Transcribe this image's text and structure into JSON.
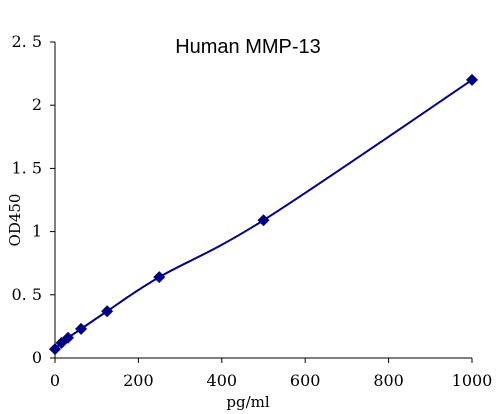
{
  "chart_data": {
    "type": "scatter",
    "title": "Human MMP-13",
    "xlabel": "pg/ml",
    "ylabel": "OD450",
    "xlim": [
      0,
      1000
    ],
    "ylim": [
      0,
      2.5
    ],
    "x_ticks": [
      0,
      200,
      400,
      600,
      800,
      1000
    ],
    "y_ticks": [
      0,
      0.5,
      1,
      1.5,
      2,
      2.5
    ],
    "x_tick_labels": [
      "0",
      "200",
      "400",
      "600",
      "800",
      "1000"
    ],
    "y_tick_labels": [
      "0",
      "0. 5",
      "1",
      "1. 5",
      "2",
      "2. 5"
    ],
    "grid": false,
    "smooth_line": true,
    "series": [
      {
        "color": "#000080",
        "marker": "diamond",
        "x": [
          0,
          15.6,
          31.25,
          62.5,
          125,
          250,
          500,
          1000
        ],
        "y": [
          0.07,
          0.12,
          0.16,
          0.23,
          0.37,
          0.64,
          1.09,
          2.2
        ]
      }
    ]
  }
}
